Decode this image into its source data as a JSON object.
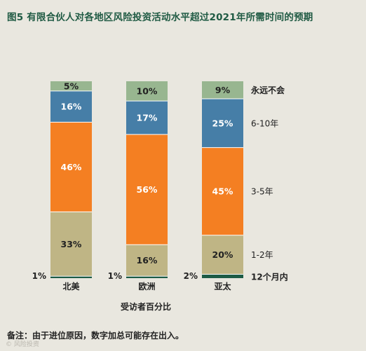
{
  "title": "图5 有限合伙人对各地区风险投资活动水平超过2021年所需时间的预期",
  "note": "备注：由于进位原因，数字加总可能存在出入。",
  "watermark": "© 风险投资",
  "chart_data": {
    "type": "bar",
    "stacked": true,
    "percent": true,
    "categories": [
      "北美",
      "欧洲",
      "亚太"
    ],
    "xlabel": "受访者百分比",
    "series": [
      {
        "name": "12个月内",
        "color": "#1d5c46",
        "values": [
          1,
          1,
          2
        ]
      },
      {
        "name": "1-2年",
        "color": "#bfb585",
        "values": [
          33,
          16,
          20
        ]
      },
      {
        "name": "3-5年",
        "color": "#f47f22",
        "values": [
          46,
          56,
          45
        ]
      },
      {
        "name": "6-10年",
        "color": "#467ea7",
        "values": [
          16,
          17,
          25
        ]
      },
      {
        "name": "永远不会",
        "color": "#98b690",
        "values": [
          5,
          10,
          9
        ]
      }
    ],
    "value_labels": [
      [
        "1%",
        "33%",
        "46%",
        "16%",
        "5%"
      ],
      [
        "1%",
        "16%",
        "56%",
        "17%",
        "10%"
      ],
      [
        "2%",
        "20%",
        "45%",
        "25%",
        "9%"
      ]
    ],
    "legend_position": "right"
  }
}
